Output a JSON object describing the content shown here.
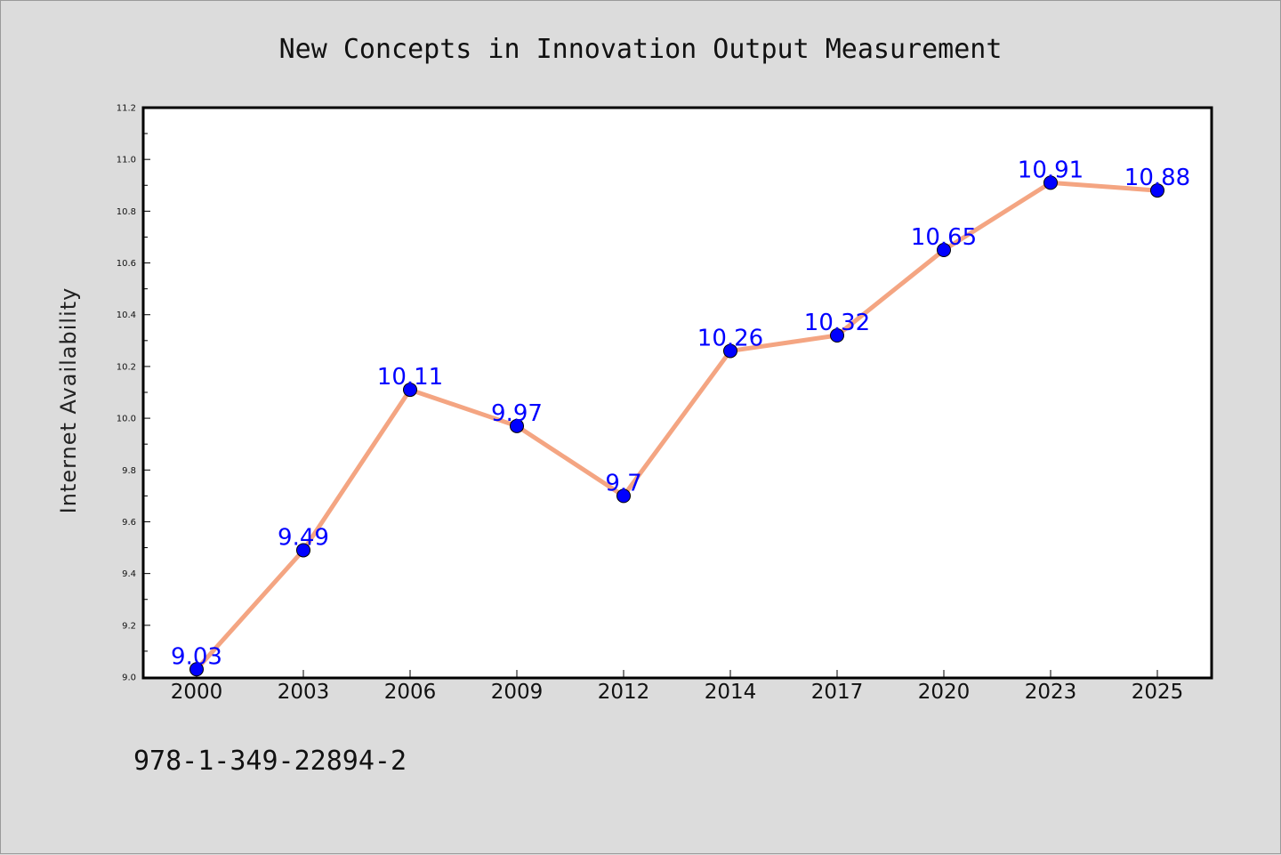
{
  "chart_data": {
    "type": "line",
    "title": "New Concepts in Innovation Output Measurement",
    "xlabel": "",
    "ylabel": "Internet Availability",
    "categories": [
      "2000",
      "2003",
      "2006",
      "2009",
      "2012",
      "2014",
      "2017",
      "2020",
      "2023",
      "2025"
    ],
    "series": [
      {
        "values": [
          9.03,
          9.49,
          10.11,
          9.97,
          9.7,
          10.26,
          10.32,
          10.65,
          10.91,
          10.88
        ],
        "data_labels": [
          "9.03",
          "9.49",
          "10.11",
          "9.97",
          "9.7",
          "10.26",
          "10.32",
          "10.65",
          "10.91",
          "10.88"
        ]
      }
    ],
    "ylim": [
      9.0,
      11.2
    ],
    "yticks": [
      "9.0",
      "9.2",
      "9.4",
      "9.6",
      "9.8",
      "10.0",
      "10.2",
      "10.4",
      "10.6",
      "10.8",
      "11.0",
      "11.2"
    ],
    "grid": false,
    "legend": "none",
    "colors": {
      "line": "#f4a582",
      "marker": "#0000ff",
      "data_label": "#0000ff",
      "background": "#dcdcdc",
      "plot_background": "#ffffff"
    }
  },
  "footer": {
    "isbn": "978-1-349-22894-2"
  }
}
